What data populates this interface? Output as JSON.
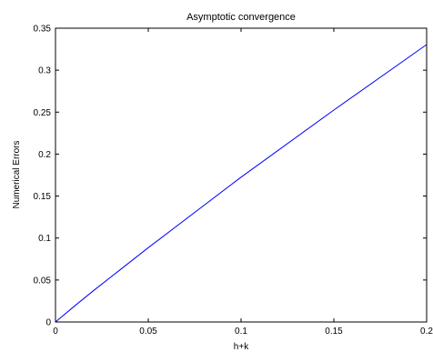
{
  "chart_data": {
    "type": "line",
    "title": "Asymptotic convergence",
    "xlabel": "h+k",
    "ylabel": "Numerical Errors",
    "xlim": [
      0,
      0.2
    ],
    "ylim": [
      0,
      0.35
    ],
    "x_ticks": [
      "0",
      "0.05",
      "0.1",
      "0.15",
      "0.2"
    ],
    "y_ticks": [
      "0",
      "0.05",
      "0.1",
      "0.15",
      "0.2",
      "0.25",
      "0.3",
      "0.35"
    ],
    "grid": false,
    "series": [
      {
        "color": "#0000ff",
        "x": [
          0,
          0.01,
          0.02,
          0.05,
          0.1,
          0.15,
          0.2
        ],
        "y": [
          0,
          0.0185,
          0.0365,
          0.0885,
          0.1725,
          0.2525,
          0.3305
        ]
      }
    ]
  }
}
